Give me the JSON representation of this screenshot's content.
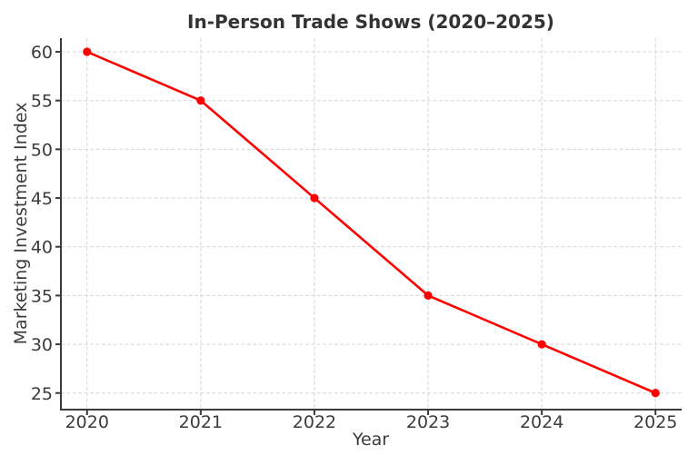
{
  "chart": {
    "title": "In-Person Trade Shows (2020–2025)",
    "xlabel": "Year",
    "ylabel": "Marketing Investment Index"
  },
  "chart_data": {
    "type": "line",
    "title": "In-Person Trade Shows (2020–2025)",
    "xlabel": "Year",
    "ylabel": "Marketing Investment Index",
    "x": [
      2020,
      2021,
      2022,
      2023,
      2024,
      2025
    ],
    "values": [
      60,
      55,
      45,
      35,
      30,
      25
    ],
    "xticks": [
      2020,
      2021,
      2022,
      2023,
      2024,
      2025
    ],
    "yticks": [
      25,
      30,
      35,
      40,
      45,
      50,
      55,
      60
    ],
    "xlim": [
      2019.77,
      2025.23
    ],
    "ylim": [
      23.3,
      61.4
    ],
    "grid": true,
    "grid_style": "dashed",
    "legend": "none",
    "marker": "circle",
    "line_color": "#ff0000",
    "marker_color": "#ff0000",
    "grid_color": "#d5d5d5",
    "spine_color": "#3a3a3a",
    "text_color": "#3c3c3c",
    "title_color": "#333333",
    "background": "#ffffff"
  }
}
